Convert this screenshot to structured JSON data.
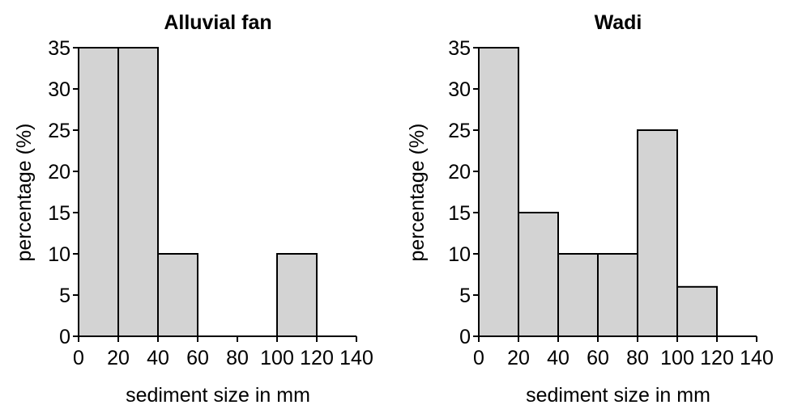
{
  "chart_data": [
    {
      "type": "bar",
      "title": "Alluvial fan",
      "xlabel": "sediment size in mm",
      "ylabel": "percentage (%)",
      "bin_edges": [
        0,
        20,
        40,
        60,
        80,
        100,
        120,
        140
      ],
      "values": [
        35,
        35,
        10,
        0,
        0,
        10,
        0
      ],
      "xlim": [
        0,
        140
      ],
      "ylim": [
        0,
        35
      ],
      "xticks": [
        0,
        20,
        40,
        60,
        80,
        100,
        120,
        140
      ],
      "yticks": [
        0,
        5,
        10,
        15,
        20,
        25,
        30,
        35
      ],
      "grid": false,
      "bar_color": "#d3d3d3"
    },
    {
      "type": "bar",
      "title": "Wadi",
      "xlabel": "sediment size in mm",
      "ylabel": "percentage (%)",
      "bin_edges": [
        0,
        20,
        40,
        60,
        80,
        100,
        120,
        140
      ],
      "values": [
        35,
        15,
        10,
        10,
        25,
        6,
        0
      ],
      "xlim": [
        0,
        140
      ],
      "ylim": [
        0,
        35
      ],
      "xticks": [
        0,
        20,
        40,
        60,
        80,
        100,
        120,
        140
      ],
      "yticks": [
        0,
        5,
        10,
        15,
        20,
        25,
        30,
        35
      ],
      "grid": false,
      "bar_color": "#d3d3d3"
    }
  ]
}
